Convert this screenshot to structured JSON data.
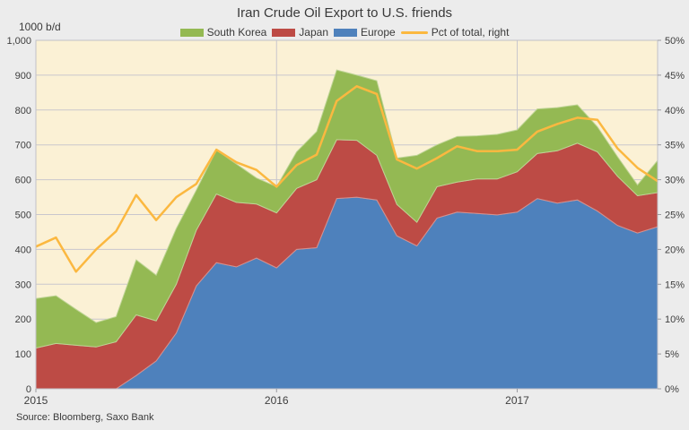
{
  "page": {
    "background": "#ECECEC",
    "plot_background": "#FBF1D5",
    "gridline_color": "#C9C7CD",
    "border_color": "#C2C1C7",
    "text_color": "#3E3E3E"
  },
  "chart_data": {
    "type": "area",
    "stacked": true,
    "title": "Iran Crude Oil Export to U.S. friends",
    "unit_label": "1000 b/d",
    "source": "Source: Bloomberg,  Saxo Bank",
    "months": [
      "2015-01",
      "2015-02",
      "2015-03",
      "2015-04",
      "2015-05",
      "2015-06",
      "2015-07",
      "2015-08",
      "2015-09",
      "2015-10",
      "2015-11",
      "2015-12",
      "2016-01",
      "2016-02",
      "2016-03",
      "2016-04",
      "2016-05",
      "2016-06",
      "2016-07",
      "2016-08",
      "2016-09",
      "2016-10",
      "2016-11",
      "2016-12",
      "2017-01",
      "2017-02",
      "2017-03",
      "2017-04",
      "2017-05",
      "2017-06",
      "2017-07",
      "2017-08"
    ],
    "x_tick_labels": [
      "2015",
      "2016",
      "2017"
    ],
    "x_tick_positions": [
      0,
      12,
      24
    ],
    "stack_order_bottom_to_top": [
      "Europe",
      "Japan",
      "South Korea"
    ],
    "series": [
      {
        "name": "South Korea",
        "color": "#94B953",
        "values": [
          142,
          137,
          103,
          70,
          72,
          158,
          131,
          160,
          115,
          126,
          110,
          75,
          75,
          105,
          138,
          200,
          187,
          214,
          133,
          192,
          120,
          131,
          124,
          128,
          120,
          128,
          124,
          110,
          72,
          56,
          31,
          92
        ]
      },
      {
        "name": "Japan",
        "color": "#BD4B45",
        "values": [
          117,
          130,
          125,
          120,
          135,
          174,
          115,
          140,
          160,
          197,
          185,
          155,
          158,
          175,
          195,
          169,
          163,
          128,
          90,
          68,
          90,
          86,
          99,
          103,
          116,
          129,
          150,
          163,
          170,
          141,
          107,
          98
        ]
      },
      {
        "name": "Europe",
        "color": "#4E81BC",
        "values": [
          0,
          0,
          0,
          0,
          0,
          38,
          80,
          160,
          295,
          362,
          350,
          375,
          347,
          400,
          405,
          546,
          550,
          542,
          439,
          410,
          490,
          507,
          503,
          499,
          507,
          546,
          533,
          542,
          510,
          469,
          447,
          465
        ]
      }
    ],
    "line_series": {
      "name": "Pct of total, right",
      "color": "#FBB840",
      "axis": "right",
      "values": [
        20.4,
        21.7,
        16.8,
        20.0,
        22.6,
        27.8,
        24.2,
        27.5,
        29.4,
        34.3,
        32.5,
        31.4,
        29.0,
        32.1,
        33.6,
        41.3,
        43.4,
        42.3,
        32.9,
        31.6,
        33.1,
        34.8,
        34.1,
        34.1,
        34.3,
        36.9,
        38.0,
        38.9,
        38.6,
        34.5,
        31.7,
        29.8
      ]
    },
    "left_axis": {
      "min": 0,
      "max": 1000,
      "step": 100,
      "tick_labels": [
        "0",
        "100",
        "200",
        "300",
        "400",
        "500",
        "600",
        "700",
        "800",
        "900",
        "1,000"
      ]
    },
    "right_axis": {
      "min": 0,
      "max": 50,
      "step": 5,
      "tick_labels": [
        "0%",
        "5%",
        "10%",
        "15%",
        "20%",
        "25%",
        "30%",
        "35%",
        "40%",
        "45%",
        "50%"
      ]
    }
  }
}
